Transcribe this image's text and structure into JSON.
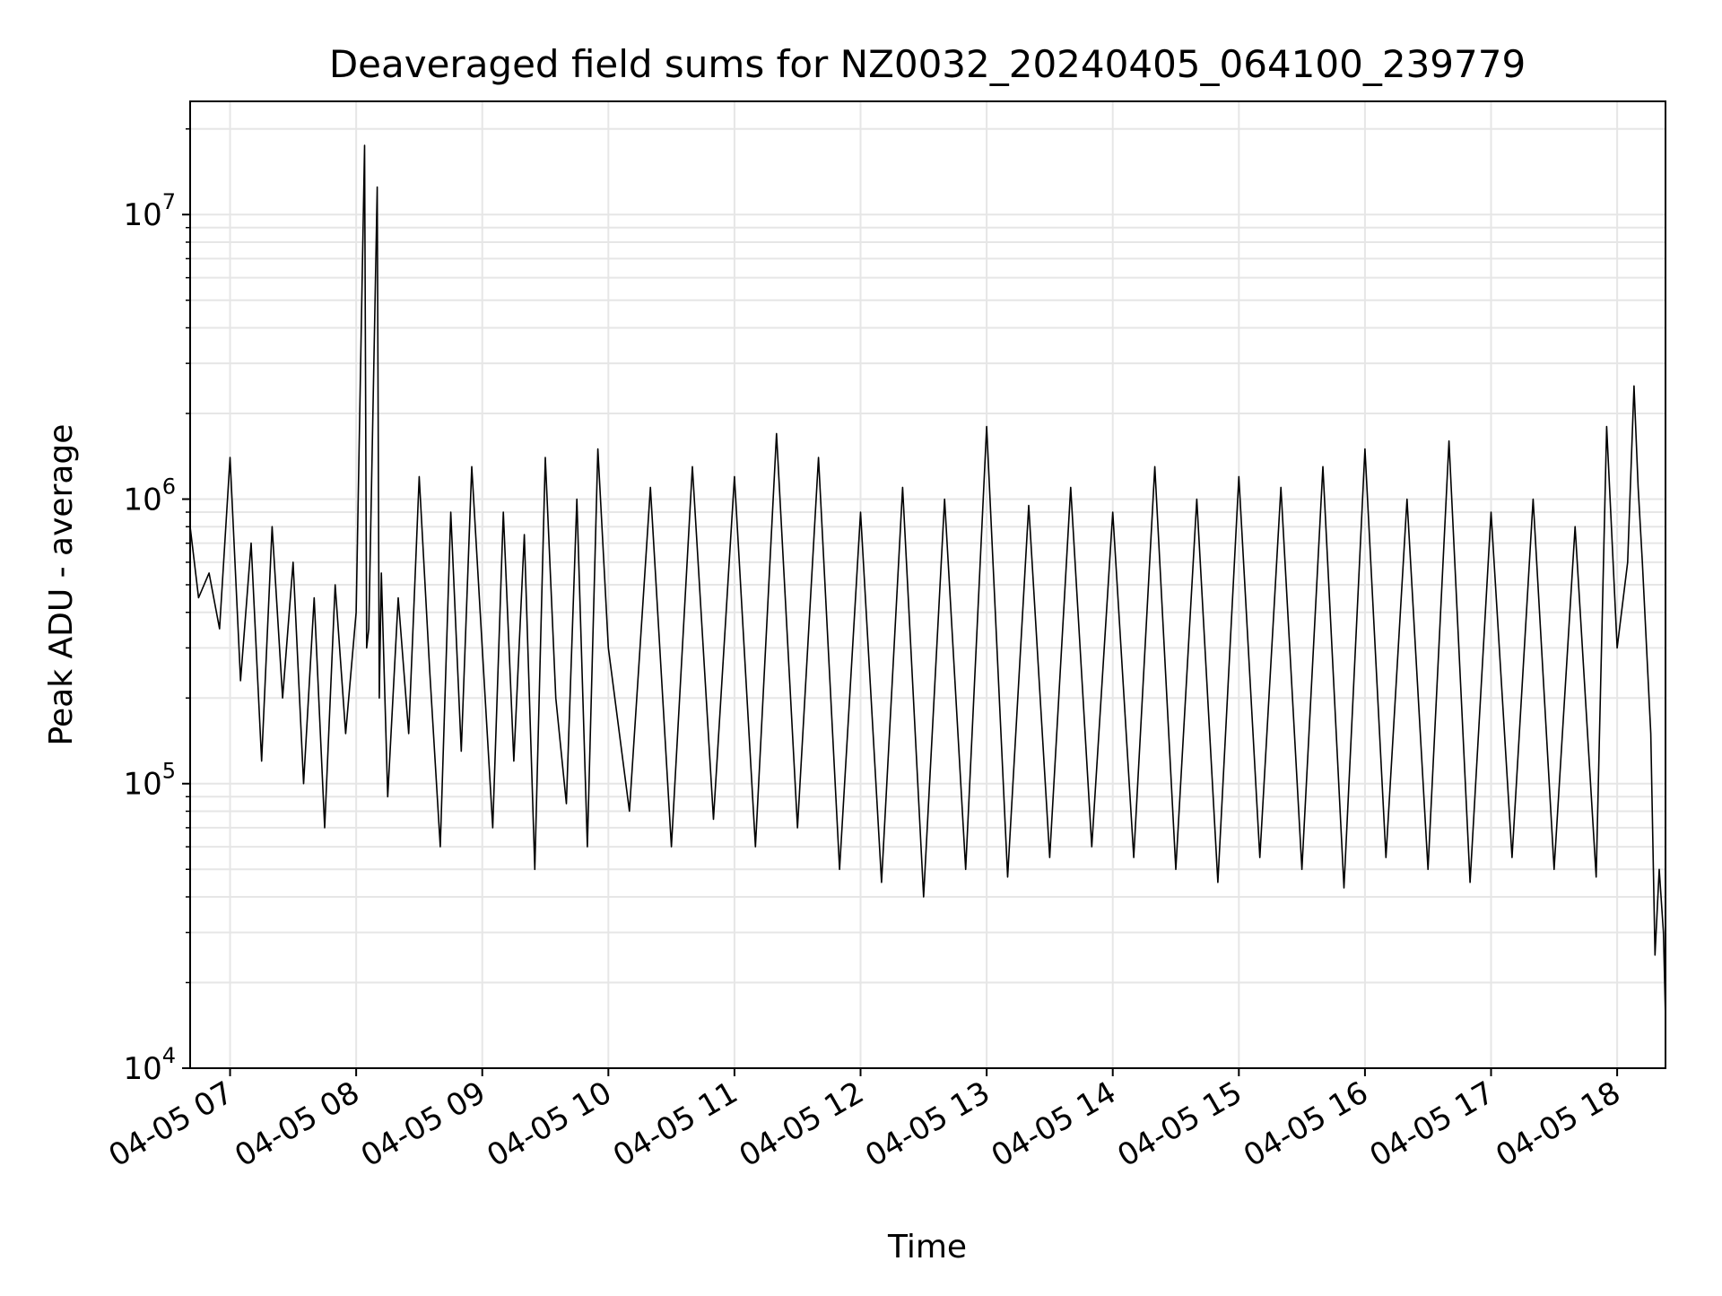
{
  "chart_data": {
    "type": "line",
    "title": "Deaveraged field sums for NZ0032_20240405_064100_239779",
    "xlabel": "Time",
    "ylabel": "Peak ADU - average",
    "yscale": "log",
    "ylim": [
      10000,
      25000000
    ],
    "xlim": [
      "04-05 06:41",
      "04-05 18:23"
    ],
    "grid": true,
    "line_color": "#000000",
    "grid_color": "#e6e6e6",
    "x_ticks": [
      "04-05 07",
      "04-05 08",
      "04-05 09",
      "04-05 10",
      "04-05 11",
      "04-05 12",
      "04-05 13",
      "04-05 14",
      "04-05 15",
      "04-05 16",
      "04-05 17",
      "04-05 18"
    ],
    "y_ticks": [
      {
        "value": 10000,
        "base": "10",
        "exp": "4"
      },
      {
        "value": 100000,
        "base": "10",
        "exp": "5"
      },
      {
        "value": 1000000,
        "base": "10",
        "exp": "6"
      },
      {
        "value": 10000000,
        "base": "10",
        "exp": "7"
      }
    ],
    "series": [
      {
        "x": [
          "04-05 06:41",
          "04-05 06:45",
          "04-05 06:50",
          "04-05 06:55",
          "04-05 07:00",
          "04-05 07:05",
          "04-05 07:10",
          "04-05 07:15",
          "04-05 07:20",
          "04-05 07:25",
          "04-05 07:30",
          "04-05 07:35",
          "04-05 07:40",
          "04-05 07:45",
          "04-05 07:50",
          "04-05 07:55",
          "04-05 08:00",
          "04-05 08:04",
          "04-05 08:05",
          "04-05 08:06",
          "04-05 08:10",
          "04-05 08:11",
          "04-05 08:12",
          "04-05 08:15",
          "04-05 08:20",
          "04-05 08:25",
          "04-05 08:30",
          "04-05 08:35",
          "04-05 08:40",
          "04-05 08:45",
          "04-05 08:50",
          "04-05 08:55",
          "04-05 09:00",
          "04-05 09:05",
          "04-05 09:10",
          "04-05 09:15",
          "04-05 09:20",
          "04-05 09:25",
          "04-05 09:30",
          "04-05 09:35",
          "04-05 09:40",
          "04-05 09:45",
          "04-05 09:50",
          "04-05 09:55",
          "04-05 10:00",
          "04-05 10:10",
          "04-05 10:20",
          "04-05 10:30",
          "04-05 10:40",
          "04-05 10:50",
          "04-05 11:00",
          "04-05 11:10",
          "04-05 11:20",
          "04-05 11:30",
          "04-05 11:40",
          "04-05 11:50",
          "04-05 12:00",
          "04-05 12:10",
          "04-05 12:20",
          "04-05 12:30",
          "04-05 12:40",
          "04-05 12:50",
          "04-05 13:00",
          "04-05 13:10",
          "04-05 13:20",
          "04-05 13:30",
          "04-05 13:40",
          "04-05 13:50",
          "04-05 14:00",
          "04-05 14:10",
          "04-05 14:20",
          "04-05 14:30",
          "04-05 14:40",
          "04-05 14:50",
          "04-05 15:00",
          "04-05 15:10",
          "04-05 15:20",
          "04-05 15:30",
          "04-05 15:40",
          "04-05 15:50",
          "04-05 16:00",
          "04-05 16:10",
          "04-05 16:20",
          "04-05 16:30",
          "04-05 16:40",
          "04-05 16:50",
          "04-05 17:00",
          "04-05 17:10",
          "04-05 17:20",
          "04-05 17:30",
          "04-05 17:40",
          "04-05 17:50",
          "04-05 17:55",
          "04-05 18:00",
          "04-05 18:05",
          "04-05 18:08",
          "04-05 18:10",
          "04-05 18:12",
          "04-05 18:14",
          "04-05 18:16",
          "04-05 18:18",
          "04-05 18:20",
          "04-05 18:22",
          "04-05 18:23"
        ],
        "y": [
          800000,
          450000,
          550000,
          350000,
          1400000,
          230000,
          700000,
          120000,
          800000,
          200000,
          600000,
          100000,
          450000,
          70000,
          500000,
          150000,
          400000,
          17500000,
          300000,
          350000,
          12500000,
          200000,
          550000,
          90000,
          450000,
          150000,
          1200000,
          250000,
          60000,
          900000,
          130000,
          1300000,
          300000,
          70000,
          900000,
          120000,
          750000,
          50000,
          1400000,
          200000,
          85000,
          1000000,
          60000,
          1500000,
          300000,
          80000,
          1100000,
          60000,
          1300000,
          75000,
          1200000,
          60000,
          1700000,
          70000,
          1400000,
          50000,
          900000,
          45000,
          1100000,
          40000,
          1000000,
          50000,
          1800000,
          47000,
          950000,
          55000,
          1100000,
          60000,
          900000,
          55000,
          1300000,
          50000,
          1000000,
          45000,
          1200000,
          55000,
          1100000,
          50000,
          1300000,
          43000,
          1500000,
          55000,
          1000000,
          50000,
          1600000,
          45000,
          900000,
          55000,
          1000000,
          50000,
          800000,
          47000,
          1800000,
          300000,
          600000,
          2500000,
          1100000,
          600000,
          300000,
          150000,
          25000,
          50000,
          30000,
          15000
        ]
      }
    ]
  }
}
